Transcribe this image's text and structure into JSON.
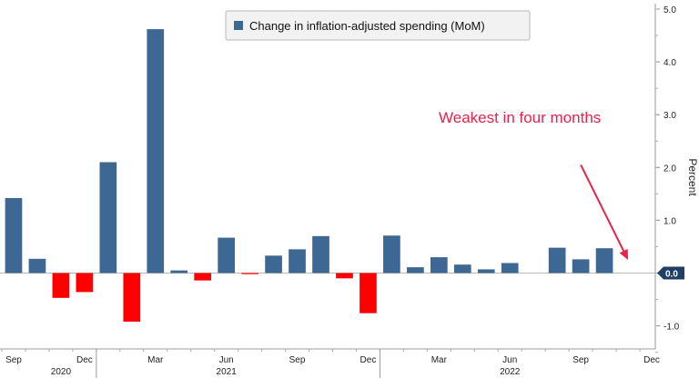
{
  "chart_data": {
    "type": "bar",
    "x": [
      "2020-09",
      "2020-10",
      "2020-11",
      "2020-12",
      "2021-01",
      "2021-02",
      "2021-03",
      "2021-04",
      "2021-05",
      "2021-06",
      "2021-07",
      "2021-08",
      "2021-09",
      "2021-10",
      "2021-11",
      "2021-12",
      "2022-01",
      "2022-02",
      "2022-03",
      "2022-04",
      "2022-05",
      "2022-06",
      "2022-07",
      "2022-08",
      "2022-09",
      "2022-10"
    ],
    "series": [
      {
        "name": "Change in inflation-adjusted spending (MoM)",
        "values": [
          1.42,
          0.27,
          -0.47,
          -0.36,
          2.1,
          -0.92,
          4.62,
          0.05,
          -0.14,
          0.67,
          -0.02,
          0.33,
          0.45,
          0.7,
          -0.1,
          -0.76,
          0.71,
          0.11,
          0.3,
          0.16,
          0.07,
          0.19,
          null,
          0.48,
          0.26,
          0.47
        ]
      }
    ],
    "positive_color": "#3d6894",
    "negative_color": "#ff0000",
    "ylabel": "Percent",
    "ylim": [
      -1.5,
      5.15
    ],
    "yticks": [
      "-1.0",
      "1.0",
      "2.0",
      "3.0",
      "4.0",
      "5.0"
    ],
    "xlim": [
      "2020-09",
      "2022-12"
    ],
    "xticks": [
      {
        "label": "Sep",
        "month": "2020-09"
      },
      {
        "label": "Dec",
        "month": "2020-12"
      },
      {
        "label": "Mar",
        "month": "2021-03"
      },
      {
        "label": "Jun",
        "month": "2021-06"
      },
      {
        "label": "Sep",
        "month": "2021-09"
      },
      {
        "label": "Dec",
        "month": "2021-12"
      },
      {
        "label": "Mar",
        "month": "2022-03"
      },
      {
        "label": "Jun",
        "month": "2022-06"
      },
      {
        "label": "Sep",
        "month": "2022-09"
      },
      {
        "label": "Dec",
        "month": "2022-12"
      }
    ],
    "years": [
      {
        "label": "2020",
        "month": "2020-11"
      },
      {
        "label": "2021",
        "month": "2021-06"
      },
      {
        "label": "2022",
        "month": "2022-06"
      }
    ],
    "last_value_badge": {
      "label": "0.0",
      "value": 0.0,
      "color": "#1f3f66"
    },
    "legend": {
      "label": "Change in inflation-adjusted spending (MoM)",
      "placement": "top-center"
    },
    "annotation": {
      "text": "Weakest in four months",
      "color": "#e8224a",
      "arrow_from": [
        "2022-09",
        2.05
      ],
      "arrow_to": [
        "2022-11",
        0.25
      ]
    },
    "grid": false,
    "axis_side": "right"
  }
}
